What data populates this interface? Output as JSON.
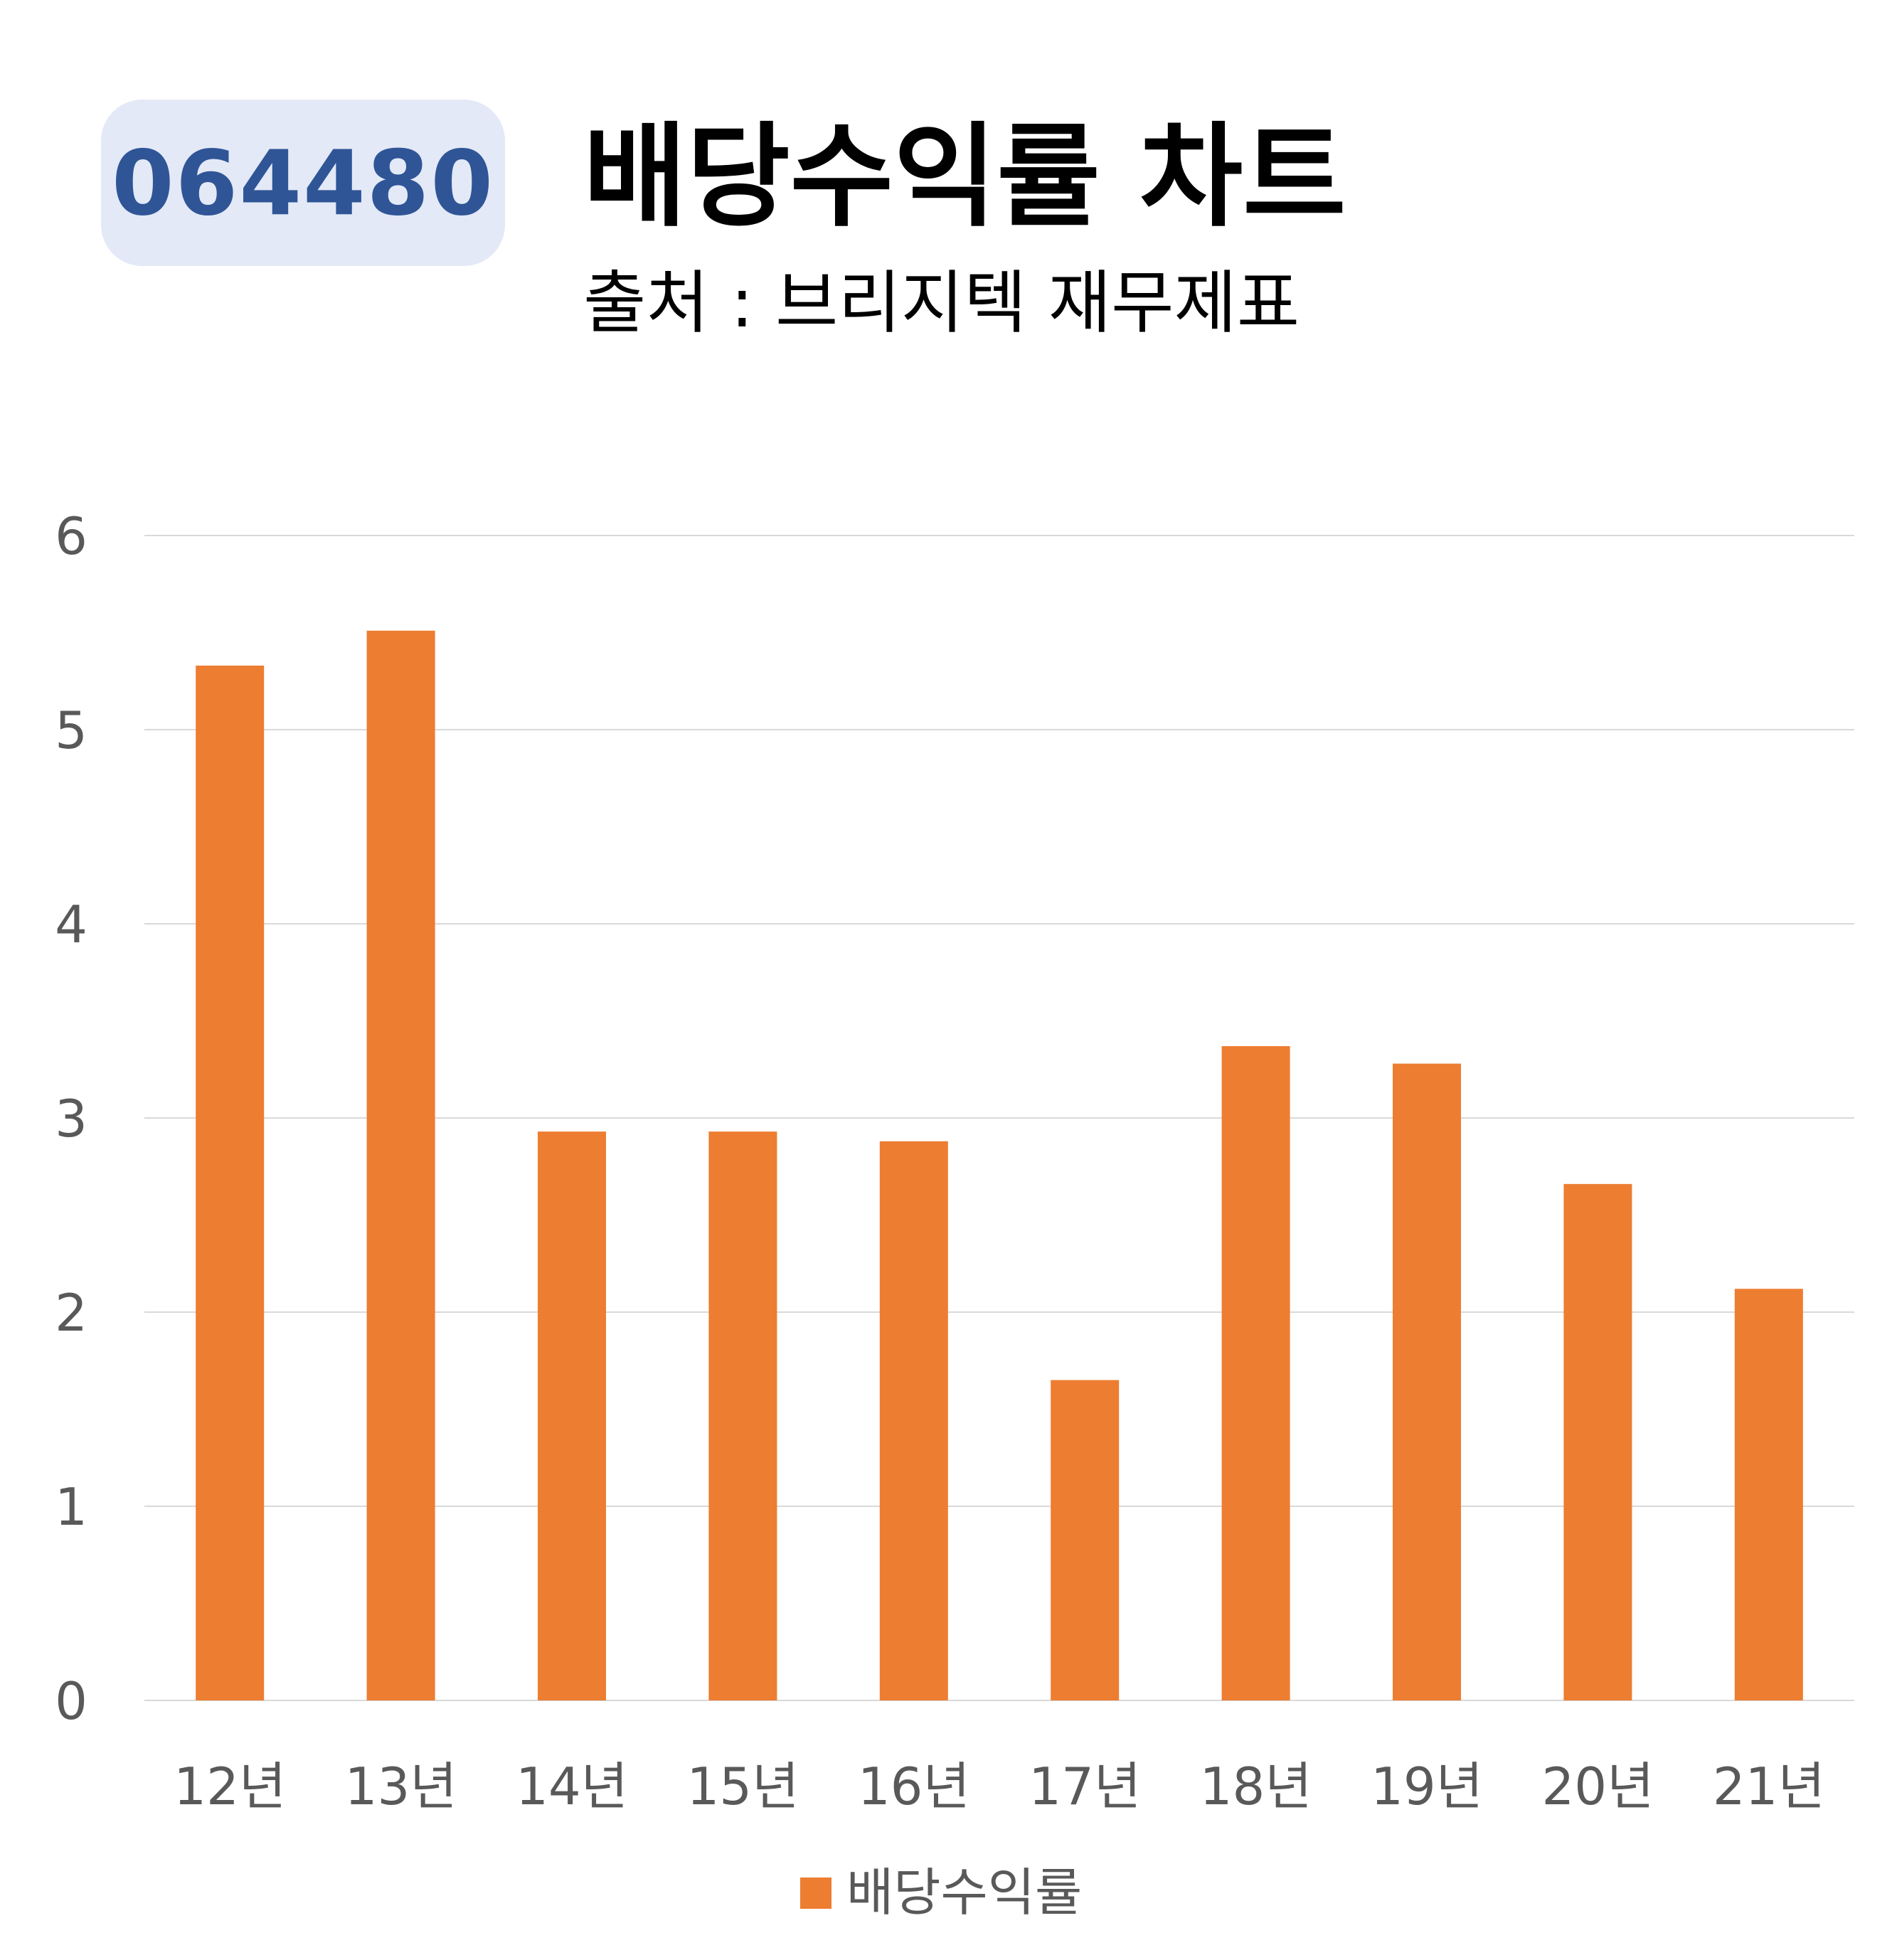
{
  "badge": {
    "code": "064480"
  },
  "header": {
    "title": "배당수익률 차트",
    "subtitle": "출처 : 브리지텍 재무제표"
  },
  "colors": {
    "bar": "#ed7d31",
    "badge_bg": "#e3e9f6",
    "badge_text": "#2f5597",
    "grid": "#d9d9d9",
    "tick_text": "#595959"
  },
  "chart_data": {
    "type": "bar",
    "title": "배당수익률 차트",
    "subtitle": "출처 : 브리지텍 재무제표",
    "categories": [
      "12년",
      "13년",
      "14년",
      "15년",
      "16년",
      "17년",
      "18년",
      "19년",
      "20년",
      "21년"
    ],
    "series": [
      {
        "name": "배당수익률",
        "values": [
          5.33,
          5.51,
          2.93,
          2.93,
          2.88,
          1.65,
          3.37,
          3.28,
          2.66,
          2.12
        ]
      }
    ],
    "ylim": [
      0,
      6
    ],
    "yticks": [
      "0",
      "1",
      "2",
      "3",
      "4",
      "5",
      "6"
    ],
    "grid": true,
    "legend": "bottom"
  }
}
